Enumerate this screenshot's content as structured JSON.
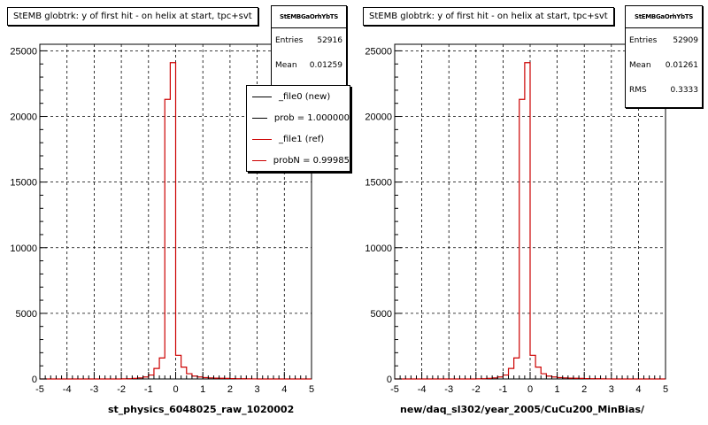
{
  "chart_data": [
    {
      "type": "bar",
      "title": "StEMB globtrk: y of first hit - on helix at start, tpc+svt",
      "xlabel": "st_physics_6048025_raw_1020002",
      "ylabel": "",
      "xlim": [
        -5,
        5
      ],
      "ylim": [
        0,
        25500
      ],
      "x_ticks": [
        "-5",
        "-4",
        "-3",
        "-2",
        "-1",
        "0",
        "1",
        "2",
        "3",
        "4",
        "5"
      ],
      "y_ticks": [
        "0",
        "5000",
        "10000",
        "15000",
        "20000",
        "25000"
      ],
      "grid": true,
      "stats": {
        "name": "StEMBGaOrhYbTS",
        "entries_label": "Entries",
        "entries": "52916",
        "mean_label": "Mean",
        "mean": "0.01259"
      },
      "legend": {
        "placement": "top-right",
        "entries": [
          {
            "label": "_file0 (new)",
            "color": "#000000"
          },
          {
            "label": "prob = 1.000000",
            "color": "#000000"
          },
          {
            "label": "_file1 (ref)",
            "color": "#cc0000"
          },
          {
            "label": "probN = 0.99985",
            "color": "#cc0000"
          }
        ]
      },
      "series": [
        {
          "color": "#cc0000",
          "bin_width": 0.2,
          "bin_left_edges": [
            -5.0,
            -4.8,
            -4.6,
            -4.4,
            -4.2,
            -4.0,
            -3.8,
            -3.6,
            -3.4,
            -3.2,
            -3.0,
            -2.8,
            -2.6,
            -2.4,
            -2.2,
            -2.0,
            -1.8,
            -1.6,
            -1.4,
            -1.2,
            -1.0,
            -0.8,
            -0.6,
            -0.4,
            -0.2,
            0.0,
            0.2,
            0.4,
            0.6,
            0.8,
            1.0,
            1.2,
            1.4,
            1.6,
            1.8,
            2.0,
            2.2,
            2.4,
            2.6,
            2.8,
            3.0,
            3.2,
            3.4,
            3.6,
            3.8,
            4.0,
            4.2,
            4.4,
            4.6,
            4.8
          ],
          "values": [
            0,
            0,
            0,
            0,
            0,
            0,
            0,
            0,
            0,
            0,
            0,
            0,
            0,
            0,
            0,
            10,
            20,
            40,
            80,
            150,
            300,
            800,
            1600,
            21300,
            24100,
            1800,
            900,
            400,
            220,
            150,
            100,
            80,
            60,
            50,
            40,
            30,
            20,
            15,
            10,
            5,
            0,
            0,
            0,
            0,
            0,
            0,
            0,
            0,
            0,
            0
          ]
        }
      ]
    },
    {
      "type": "bar",
      "title": "StEMB globtrk: y of first hit - on helix at start, tpc+svt",
      "xlabel": "new/daq_sl302/year_2005/CuCu200_MinBias/",
      "ylabel": "",
      "xlim": [
        -5,
        5
      ],
      "ylim": [
        0,
        25500
      ],
      "x_ticks": [
        "-5",
        "-4",
        "-3",
        "-2",
        "-1",
        "0",
        "1",
        "2",
        "3",
        "4",
        "5"
      ],
      "y_ticks": [
        "0",
        "5000",
        "10000",
        "15000",
        "20000",
        "25000"
      ],
      "grid": true,
      "stats": {
        "name": "StEMBGaOrhYbTS",
        "entries_label": "Entries",
        "entries": "52909",
        "mean_label": "Mean",
        "mean": "0.01261",
        "rms_label": "RMS",
        "rms": "0.3333"
      },
      "series": [
        {
          "color": "#cc0000",
          "bin_width": 0.2,
          "bin_left_edges": [
            -5.0,
            -4.8,
            -4.6,
            -4.4,
            -4.2,
            -4.0,
            -3.8,
            -3.6,
            -3.4,
            -3.2,
            -3.0,
            -2.8,
            -2.6,
            -2.4,
            -2.2,
            -2.0,
            -1.8,
            -1.6,
            -1.4,
            -1.2,
            -1.0,
            -0.8,
            -0.6,
            -0.4,
            -0.2,
            0.0,
            0.2,
            0.4,
            0.6,
            0.8,
            1.0,
            1.2,
            1.4,
            1.6,
            1.8,
            2.0,
            2.2,
            2.4,
            2.6,
            2.8,
            3.0,
            3.2,
            3.4,
            3.6,
            3.8,
            4.0,
            4.2,
            4.4,
            4.6,
            4.8
          ],
          "values": [
            0,
            0,
            0,
            0,
            0,
            0,
            0,
            0,
            0,
            0,
            0,
            0,
            0,
            0,
            0,
            10,
            20,
            40,
            80,
            150,
            300,
            800,
            1600,
            21300,
            24100,
            1800,
            900,
            400,
            220,
            150,
            100,
            80,
            60,
            50,
            40,
            30,
            20,
            15,
            10,
            5,
            0,
            0,
            0,
            0,
            0,
            0,
            0,
            0,
            0,
            0
          ]
        }
      ]
    }
  ]
}
